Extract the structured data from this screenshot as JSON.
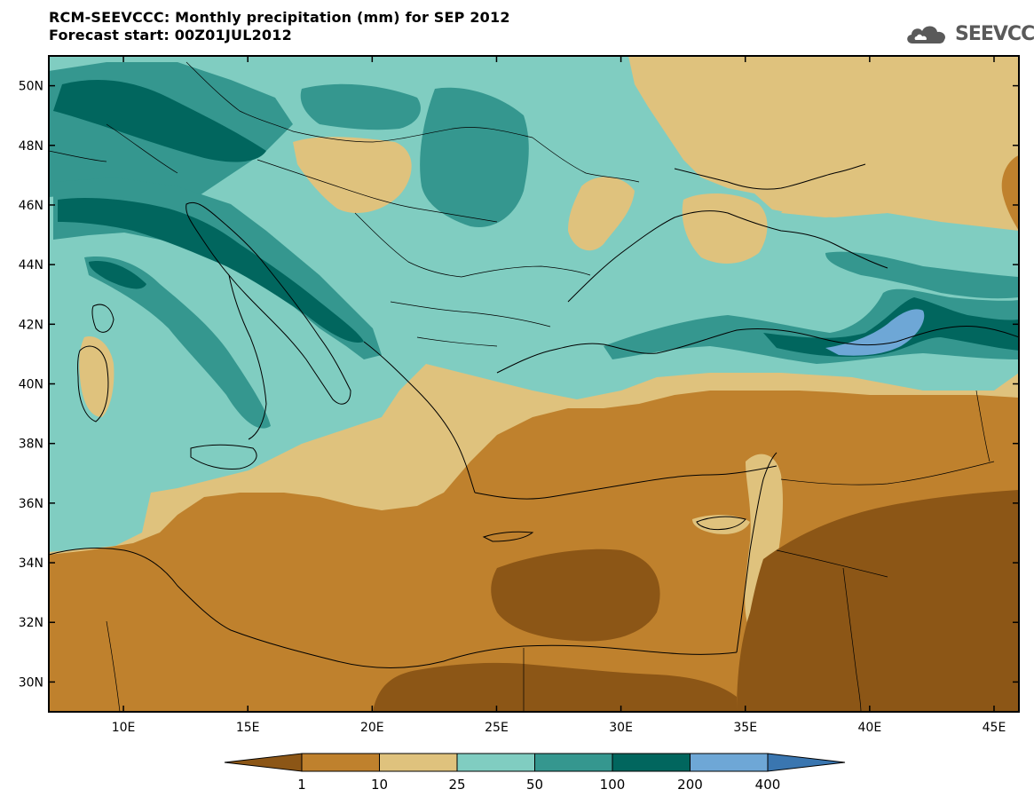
{
  "header": {
    "title": "RCM-SEEVCCC: Monthly precipitation (mm) for SEP 2012",
    "subtitle": "Forecast start: 00Z01JUL2012"
  },
  "logo": {
    "text": "SEEVCCC",
    "icon": "cloud-icon"
  },
  "map": {
    "lon_range": [
      7,
      46
    ],
    "lat_range": [
      29,
      51
    ],
    "lat_ticks": [
      "50N",
      "48N",
      "46N",
      "44N",
      "42N",
      "40N",
      "38N",
      "36N",
      "34N",
      "32N",
      "30N"
    ],
    "lon_ticks": [
      "10E",
      "15E",
      "20E",
      "25E",
      "30E",
      "35E",
      "40E",
      "45E"
    ],
    "lat_tick_values": [
      50,
      48,
      46,
      44,
      42,
      40,
      38,
      36,
      34,
      32,
      30
    ],
    "lon_tick_values": [
      10,
      15,
      20,
      25,
      30,
      35,
      40,
      45
    ]
  },
  "colorbar": {
    "labels": [
      "1",
      "10",
      "25",
      "50",
      "100",
      "200",
      "400"
    ],
    "colors": [
      "#8c5616",
      "#bf812d",
      "#dfc27d",
      "#80cdc1",
      "#35978f",
      "#01665e",
      "#6ea7d6",
      "#3a76b0"
    ]
  },
  "palette": {
    "lt1": "#8c5616",
    "c1_10": "#bf812d",
    "c10_25": "#dfc27d",
    "c25_50": "#80cdc1",
    "c50_100": "#35978f",
    "c100_200": "#01665e",
    "c200_400": "#6ea7d6"
  }
}
